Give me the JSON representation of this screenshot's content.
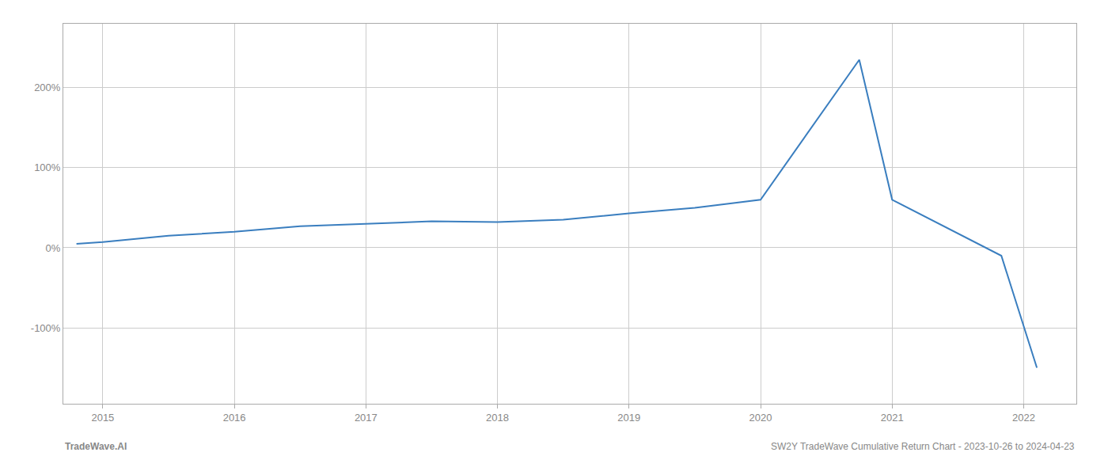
{
  "chart_data": {
    "type": "line",
    "x": [
      2014.8,
      2015.0,
      2015.5,
      2016.0,
      2016.5,
      2017.0,
      2017.5,
      2018.0,
      2018.5,
      2019.0,
      2019.5,
      2020.0,
      2020.75,
      2021.0,
      2021.83,
      2022.1
    ],
    "values": [
      5,
      7,
      15,
      20,
      27,
      30,
      33,
      32,
      35,
      43,
      50,
      60,
      235,
      60,
      -10,
      -150
    ],
    "color": "#3a7ebf",
    "xlim": [
      2014.7,
      2022.4
    ],
    "xticks": [
      2015,
      2016,
      2017,
      2018,
      2019,
      2020,
      2021,
      2022
    ],
    "ylim": [
      -195,
      280
    ],
    "yticks": [
      {
        "value": -100,
        "label": "-100%"
      },
      {
        "value": 0,
        "label": "0%"
      },
      {
        "value": 100,
        "label": "100%"
      },
      {
        "value": 200,
        "label": "200%"
      }
    ],
    "grid": true,
    "annotations": [
      "TradeWave.AI",
      "SW2Y TradeWave Cumulative Return Chart - 2023-10-26 to 2024-04-23"
    ]
  }
}
